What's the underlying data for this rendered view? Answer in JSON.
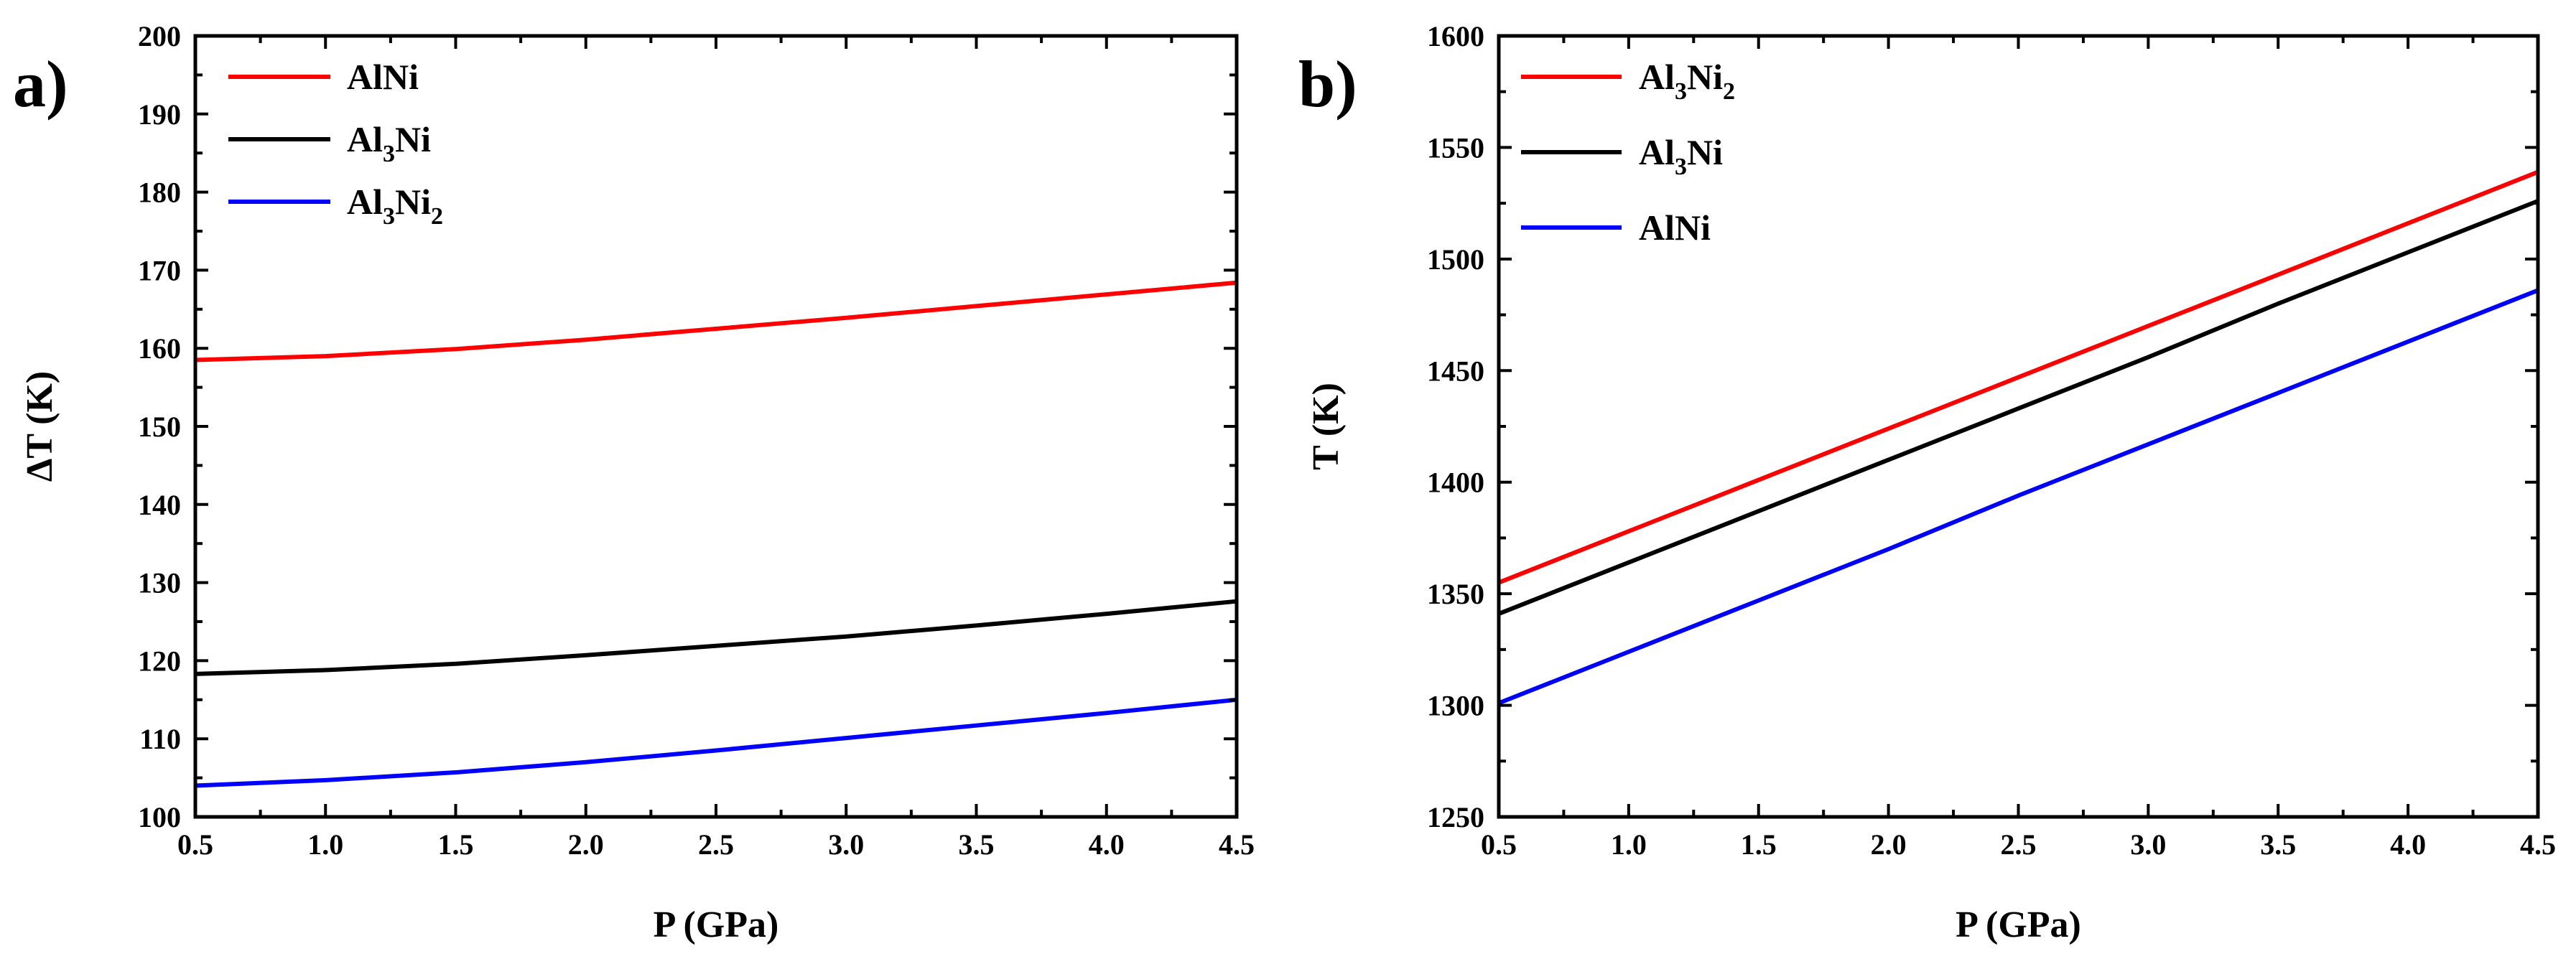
{
  "chart_data": [
    {
      "type": "line",
      "panel_label": "a)",
      "xlabel": "P (GPa)",
      "ylabel": "ΔT (K)",
      "xlim": [
        0.5,
        4.5
      ],
      "ylim": [
        100,
        200
      ],
      "xticks": [
        0.5,
        1.0,
        1.5,
        2.0,
        2.5,
        3.0,
        3.5,
        4.0,
        4.5
      ],
      "xtick_labels": [
        "0.5",
        "1.0",
        "1.5",
        "2.0",
        "2.5",
        "3.0",
        "3.5",
        "4.0",
        "4.5"
      ],
      "yticks": [
        100,
        110,
        120,
        130,
        140,
        150,
        160,
        170,
        180,
        190,
        200
      ],
      "ytick_labels": [
        "100",
        "110",
        "120",
        "130",
        "140",
        "150",
        "160",
        "170",
        "180",
        "190",
        "200"
      ],
      "legend_position": "top-left",
      "series": [
        {
          "name": "AlNi",
          "legend_main": "AlNi",
          "color": "#ff0000",
          "x": [
            0.5,
            1.0,
            1.5,
            2.0,
            2.5,
            3.0,
            3.5,
            4.0,
            4.5
          ],
          "y": [
            158.5,
            159.0,
            159.9,
            161.1,
            162.5,
            163.9,
            165.4,
            166.9,
            168.4
          ]
        },
        {
          "name": "Al3Ni",
          "legend_parts": [
            "Al",
            "3",
            "Ni",
            ""
          ],
          "color": "#000000",
          "x": [
            0.5,
            1.0,
            1.5,
            2.0,
            2.5,
            3.0,
            3.5,
            4.0,
            4.5
          ],
          "y": [
            118.3,
            118.8,
            119.6,
            120.7,
            121.9,
            123.1,
            124.5,
            126.0,
            127.6
          ]
        },
        {
          "name": "Al3Ni2",
          "legend_parts": [
            "Al",
            "3",
            "Ni",
            "2"
          ],
          "color": "#0000ff",
          "x": [
            0.5,
            1.0,
            1.5,
            2.0,
            2.5,
            3.0,
            3.5,
            4.0,
            4.5
          ],
          "y": [
            104.0,
            104.7,
            105.7,
            107.0,
            108.5,
            110.1,
            111.7,
            113.3,
            115.0
          ]
        }
      ]
    },
    {
      "type": "line",
      "panel_label": "b)",
      "xlabel": "P (GPa)",
      "ylabel": "T (K)",
      "xlim": [
        0.5,
        4.5
      ],
      "ylim": [
        1250,
        1600
      ],
      "xticks": [
        0.5,
        1.0,
        1.5,
        2.0,
        2.5,
        3.0,
        3.5,
        4.0,
        4.5
      ],
      "xtick_labels": [
        "0.5",
        "1.0",
        "1.5",
        "2.0",
        "2.5",
        "3.0",
        "3.5",
        "4.0",
        "4.5"
      ],
      "yticks": [
        1250,
        1300,
        1350,
        1400,
        1450,
        1500,
        1550,
        1600
      ],
      "ytick_labels": [
        "1250",
        "1300",
        "1350",
        "1400",
        "1450",
        "1500",
        "1550",
        "1600"
      ],
      "legend_position": "top-left",
      "series": [
        {
          "name": "Al3Ni2",
          "legend_parts": [
            "Al",
            "3",
            "Ni",
            "2"
          ],
          "color": "#ff0000",
          "x": [
            0.5,
            1.0,
            1.5,
            2.0,
            2.5,
            3.0,
            3.5,
            4.0,
            4.5
          ],
          "y": [
            1355,
            1378,
            1401,
            1424,
            1447,
            1470,
            1493,
            1516,
            1539
          ]
        },
        {
          "name": "Al3Ni",
          "legend_parts": [
            "Al",
            "3",
            "Ni",
            ""
          ],
          "color": "#000000",
          "x": [
            0.5,
            1.0,
            1.5,
            2.0,
            2.5,
            3.0,
            3.5,
            4.0,
            4.5
          ],
          "y": [
            1341,
            1364,
            1387,
            1410,
            1433,
            1456,
            1480,
            1503,
            1526
          ]
        },
        {
          "name": "AlNi",
          "legend_main": "AlNi",
          "color": "#0000ff",
          "x": [
            0.5,
            1.0,
            1.5,
            2.0,
            2.5,
            3.0,
            3.5,
            4.0,
            4.5
          ],
          "y": [
            1301,
            1324,
            1347,
            1370,
            1394,
            1417,
            1440,
            1463,
            1486
          ]
        }
      ]
    }
  ]
}
